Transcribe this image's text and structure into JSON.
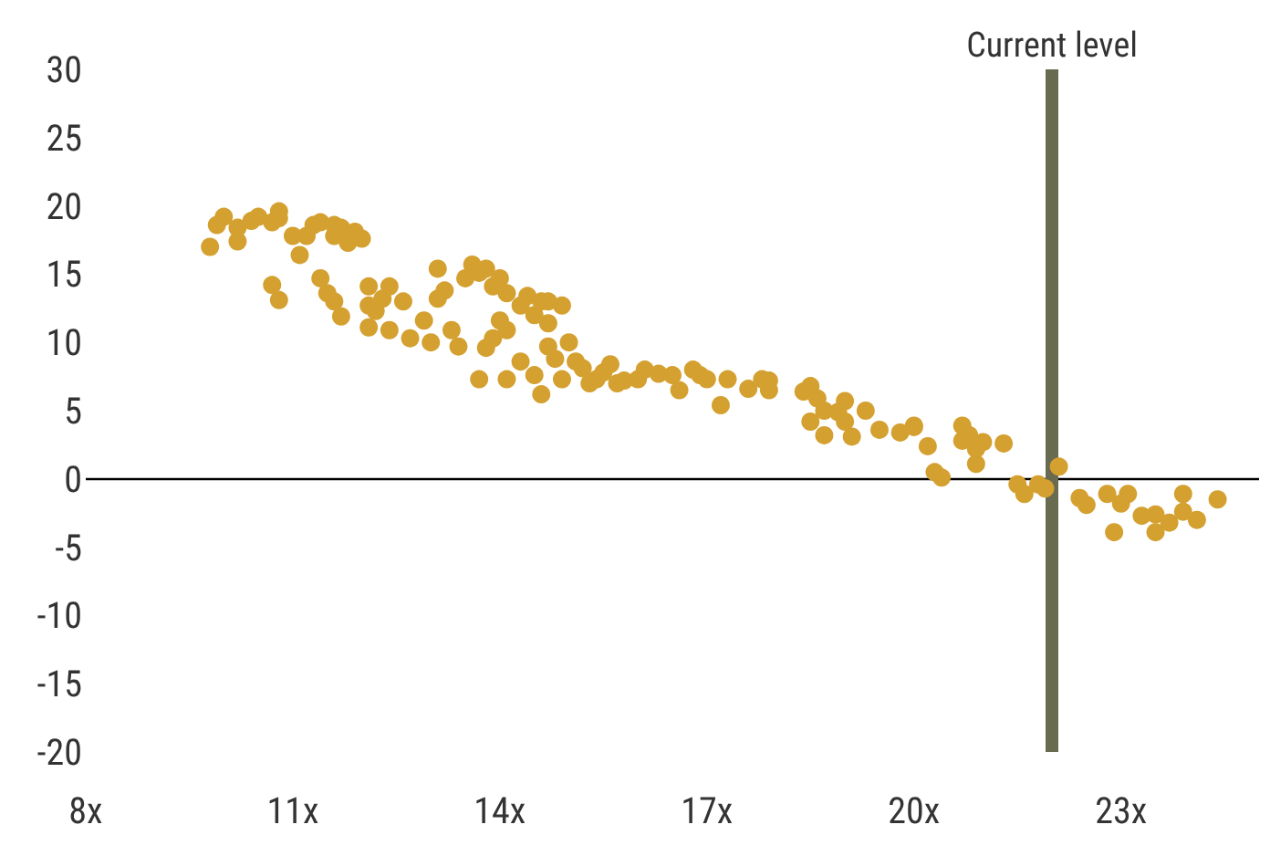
{
  "chart_data": {
    "type": "scatter",
    "marker": "circle",
    "grid": false,
    "xlim": [
      8,
      25
    ],
    "xticks": [
      {
        "value": 8,
        "label": "8x"
      },
      {
        "value": 11,
        "label": "11x"
      },
      {
        "value": 14,
        "label": "14x"
      },
      {
        "value": 17,
        "label": "17x"
      },
      {
        "value": 20,
        "label": "20x"
      },
      {
        "value": 23,
        "label": "23x"
      }
    ],
    "ylim": [
      -20,
      30
    ],
    "yticks": [
      -20,
      -15,
      -10,
      -5,
      0,
      5,
      10,
      15,
      20,
      25,
      30
    ],
    "ref_lines": [
      {
        "axis": "y",
        "value": 0,
        "color": "#000000"
      },
      {
        "axis": "x",
        "value": 22,
        "label": "Current level",
        "color": "#696b50"
      }
    ],
    "series": [
      {
        "color": "#d4a030",
        "x": [
          9.8,
          10.0,
          9.9,
          10.2,
          10.2,
          10.4,
          10.5,
          10.7,
          10.8,
          10.8,
          11.0,
          11.1,
          11.3,
          11.2,
          11.4,
          11.6,
          11.6,
          11.7,
          11.8,
          11.9,
          12.0,
          10.7,
          10.8,
          11.4,
          11.5,
          11.6,
          11.7,
          12.1,
          12.1,
          12.2,
          12.4,
          12.3,
          12.1,
          12.4,
          12.6,
          12.7,
          12.9,
          13.0,
          13.1,
          13.1,
          13.2,
          13.3,
          13.4,
          13.5,
          13.6,
          13.7,
          13.8,
          13.9,
          13.9,
          13.8,
          14.0,
          14.1,
          14.0,
          14.1,
          14.3,
          14.3,
          14.4,
          14.5,
          14.6,
          14.7,
          14.7,
          14.8,
          14.9,
          14.5,
          14.6,
          13.7,
          14.1,
          14.7,
          14.9,
          15.0,
          15.1,
          15.2,
          15.3,
          15.4,
          15.5,
          15.6,
          15.7,
          15.8,
          16.0,
          16.1,
          16.3,
          16.5,
          16.6,
          16.8,
          16.9,
          17.0,
          17.2,
          17.3,
          17.6,
          17.8,
          17.9,
          17.9,
          18.4,
          18.5,
          18.5,
          18.6,
          18.7,
          18.7,
          18.9,
          19.0,
          19.0,
          19.1,
          19.3,
          19.5,
          19.8,
          20.0,
          20.0,
          20.2,
          20.3,
          20.4,
          20.7,
          20.7,
          20.8,
          20.9,
          20.9,
          21.0,
          21.3,
          21.5,
          21.6,
          21.8,
          21.9,
          22.1,
          22.4,
          22.5,
          22.8,
          22.9,
          23.0,
          23.1,
          23.3,
          23.5,
          23.5,
          23.7,
          23.9,
          23.9,
          24.1,
          24.4
        ],
        "values": [
          17.0,
          19.2,
          18.6,
          17.4,
          18.4,
          18.9,
          19.2,
          18.8,
          19.1,
          19.6,
          17.8,
          16.4,
          18.6,
          17.8,
          18.8,
          18.6,
          17.8,
          18.4,
          17.3,
          18.1,
          17.6,
          14.2,
          13.1,
          14.7,
          13.6,
          13.0,
          11.9,
          14.1,
          12.7,
          12.3,
          14.1,
          13.2,
          11.1,
          10.9,
          13.0,
          10.3,
          11.6,
          10.0,
          13.2,
          15.4,
          13.8,
          10.9,
          9.7,
          14.7,
          15.7,
          15.1,
          15.4,
          14.1,
          10.3,
          9.6,
          14.7,
          13.6,
          11.6,
          10.9,
          12.7,
          8.6,
          13.4,
          12.0,
          13.0,
          11.4,
          9.7,
          8.8,
          7.3,
          7.6,
          6.2,
          7.3,
          7.3,
          13.0,
          12.7,
          10.0,
          8.6,
          8.1,
          7.0,
          7.3,
          7.8,
          8.4,
          7.0,
          7.2,
          7.3,
          8.0,
          7.7,
          7.6,
          6.5,
          8.0,
          7.6,
          7.3,
          5.4,
          7.3,
          6.6,
          7.3,
          7.2,
          6.5,
          6.4,
          6.8,
          4.2,
          5.9,
          5.0,
          3.2,
          4.9,
          5.7,
          4.2,
          3.1,
          5.0,
          3.6,
          3.4,
          3.8,
          3.9,
          2.4,
          0.5,
          0.1,
          3.9,
          2.8,
          3.2,
          1.1,
          2.2,
          2.7,
          2.6,
          -0.4,
          -1.1,
          -0.4,
          -0.7,
          0.9,
          -1.4,
          -1.9,
          -1.1,
          -3.9,
          -1.8,
          -1.1,
          -2.7,
          -2.6,
          -3.9,
          -3.2,
          -2.4,
          -1.1,
          -3.0,
          -1.5
        ]
      }
    ]
  }
}
